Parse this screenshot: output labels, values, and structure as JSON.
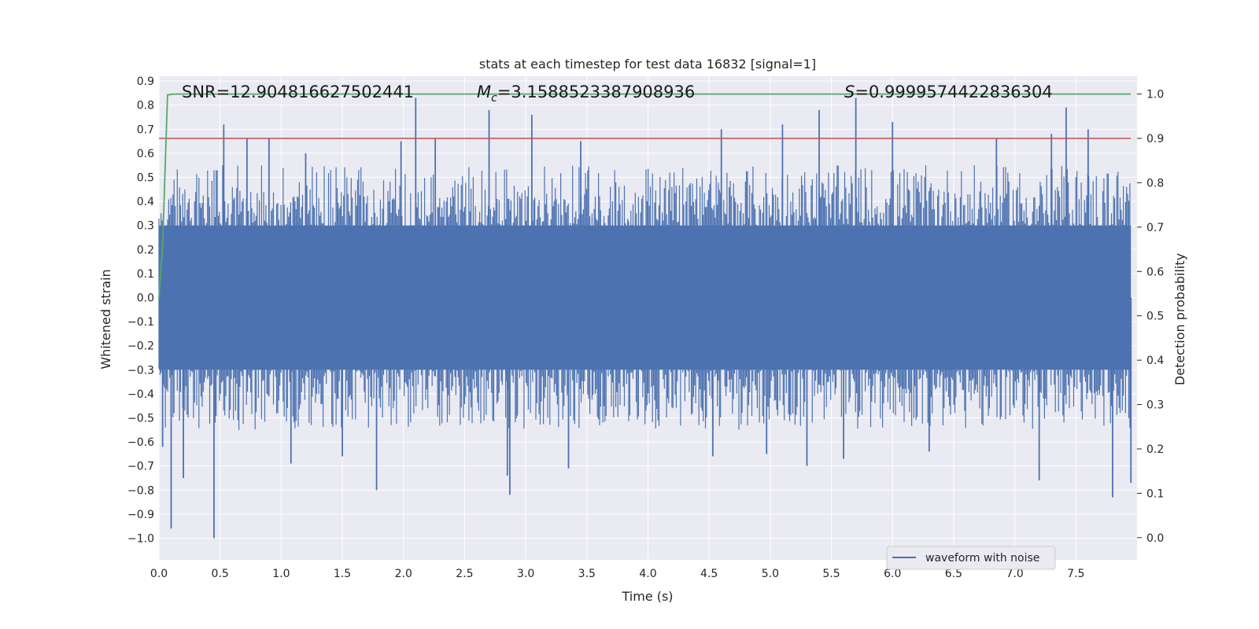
{
  "chart_data": {
    "type": "line",
    "title": "stats at each timestep for test data 16832 [signal=1]",
    "xlabel": "Time (s)",
    "ylabel": "Whitened strain",
    "y2label": "Detection probability",
    "xlim": [
      0.0,
      8.0
    ],
    "ylim": [
      -1.09,
      0.92
    ],
    "y2lim": [
      -0.05,
      1.04
    ],
    "xticks": [
      "0.0",
      "0.5",
      "1.0",
      "1.5",
      "2.0",
      "2.5",
      "3.0",
      "3.5",
      "4.0",
      "4.5",
      "5.0",
      "5.5",
      "6.0",
      "6.5",
      "7.0",
      "7.5"
    ],
    "yticks": [
      "0.9",
      "0.8",
      "0.7",
      "0.6",
      "0.5",
      "0.4",
      "0.3",
      "0.2",
      "0.1",
      "0.0",
      "−0.1",
      "−0.2",
      "−0.3",
      "−0.4",
      "−0.5",
      "−0.6",
      "−0.7",
      "−0.8",
      "−0.9",
      "−1.0"
    ],
    "y2ticks": [
      "1.0",
      "0.9",
      "0.8",
      "0.7",
      "0.6",
      "0.5",
      "0.4",
      "0.3",
      "0.2",
      "0.1",
      "0.0"
    ],
    "grid": true,
    "legend_position": "lower-right",
    "colors": {
      "waveform": "#4c72b0",
      "probability": "#55a868",
      "threshold": "#c44e52",
      "background": "#eaeaf2",
      "grid": "#ffffff"
    },
    "annotations": {
      "snr": "SNR=12.904816627502441",
      "mc_symbol": "M",
      "mc_subscript": "c",
      "mc_value": "=3.1588523387908936",
      "s_symbol": "S",
      "s_value": "=0.9999574422836304"
    },
    "series": [
      {
        "name": "waveform with noise",
        "axis": "left",
        "style": "dense-noise",
        "core_range": [
          -0.3,
          0.3
        ],
        "peaks": [
          {
            "x": 0.03,
            "y": -0.62
          },
          {
            "x": 0.1,
            "y": -0.96
          },
          {
            "x": 0.2,
            "y": -0.75
          },
          {
            "x": 0.45,
            "y": -1.0
          },
          {
            "x": 0.53,
            "y": 0.72
          },
          {
            "x": 0.72,
            "y": 0.66
          },
          {
            "x": 0.9,
            "y": 0.66
          },
          {
            "x": 1.08,
            "y": -0.69
          },
          {
            "x": 1.2,
            "y": 0.6
          },
          {
            "x": 1.5,
            "y": -0.66
          },
          {
            "x": 1.78,
            "y": -0.8
          },
          {
            "x": 1.98,
            "y": 0.65
          },
          {
            "x": 2.1,
            "y": 0.83
          },
          {
            "x": 2.26,
            "y": 0.66
          },
          {
            "x": 2.7,
            "y": 0.78
          },
          {
            "x": 2.85,
            "y": -0.74
          },
          {
            "x": 2.87,
            "y": -0.82
          },
          {
            "x": 3.05,
            "y": 0.76
          },
          {
            "x": 3.35,
            "y": -0.71
          },
          {
            "x": 3.45,
            "y": 0.65
          },
          {
            "x": 3.9,
            "y": 0.14
          },
          {
            "x": 4.53,
            "y": -0.66
          },
          {
            "x": 4.6,
            "y": 0.7
          },
          {
            "x": 4.97,
            "y": -0.65
          },
          {
            "x": 5.1,
            "y": 0.72
          },
          {
            "x": 5.3,
            "y": -0.7
          },
          {
            "x": 5.4,
            "y": 0.78
          },
          {
            "x": 5.7,
            "y": 0.83
          },
          {
            "x": 5.6,
            "y": -0.67
          },
          {
            "x": 6.0,
            "y": 0.73
          },
          {
            "x": 6.3,
            "y": -0.64
          },
          {
            "x": 6.85,
            "y": 0.66
          },
          {
            "x": 7.2,
            "y": -0.76
          },
          {
            "x": 7.3,
            "y": 0.68
          },
          {
            "x": 7.42,
            "y": 0.79
          },
          {
            "x": 7.6,
            "y": 0.7
          },
          {
            "x": 7.8,
            "y": -0.83
          },
          {
            "x": 7.95,
            "y": -0.77
          }
        ]
      },
      {
        "name": "",
        "axis": "right",
        "style": "line",
        "points": [
          [
            0.0,
            0.54
          ],
          [
            0.03,
            0.66
          ],
          [
            0.07,
            0.998
          ],
          [
            0.12,
            1.0
          ],
          [
            7.95,
            1.0
          ]
        ]
      },
      {
        "name": "",
        "axis": "right",
        "style": "hline",
        "y": 0.9,
        "x_range": [
          0.0,
          7.95
        ]
      }
    ]
  }
}
